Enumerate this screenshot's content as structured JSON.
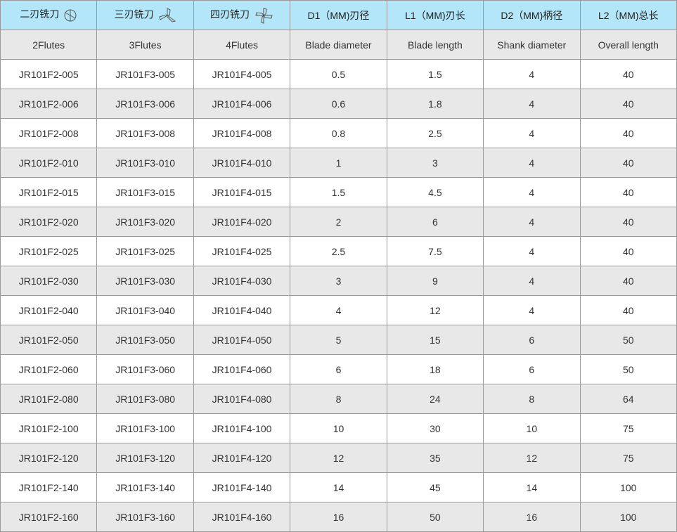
{
  "header": [
    "二刃铣刀",
    "三刃铣刀",
    "四刃铣刀",
    "D1（MM)刃径",
    "L1（MM)刃长",
    "D2（MM)柄径",
    "L2（MM)总长"
  ],
  "header_icons": [
    "two-flute-cutter-icon",
    "three-flute-cutter-icon",
    "four-flute-cutter-icon"
  ],
  "subheader": [
    "2Flutes",
    "3Flutes",
    "4Flutes",
    "Blade diameter",
    "Blade length",
    "Shank diameter",
    "Overall length"
  ],
  "colors": {
    "header_bg": "#b3e6f8",
    "alt_row_bg": "#e9e8e8",
    "border": "#9a9a9a"
  },
  "rows": [
    [
      "JR101F2-005",
      "JR101F3-005",
      "JR101F4-005",
      "0.5",
      "1.5",
      "4",
      "40"
    ],
    [
      "JR101F2-006",
      "JR101F3-006",
      "JR101F4-006",
      "0.6",
      "1.8",
      "4",
      "40"
    ],
    [
      "JR101F2-008",
      "JR101F3-008",
      "JR101F4-008",
      "0.8",
      "2.5",
      "4",
      "40"
    ],
    [
      "JR101F2-010",
      "JR101F3-010",
      "JR101F4-010",
      "1",
      "3",
      "4",
      "40"
    ],
    [
      "JR101F2-015",
      "JR101F3-015",
      "JR101F4-015",
      "1.5",
      "4.5",
      "4",
      "40"
    ],
    [
      "JR101F2-020",
      "JR101F3-020",
      "JR101F4-020",
      "2",
      "6",
      "4",
      "40"
    ],
    [
      "JR101F2-025",
      "JR101F3-025",
      "JR101F4-025",
      "2.5",
      "7.5",
      "4",
      "40"
    ],
    [
      "JR101F2-030",
      "JR101F3-030",
      "JR101F4-030",
      "3",
      "9",
      "4",
      "40"
    ],
    [
      "JR101F2-040",
      "JR101F3-040",
      "JR101F4-040",
      "4",
      "12",
      "4",
      "40"
    ],
    [
      "JR101F2-050",
      "JR101F3-050",
      "JR101F4-050",
      "5",
      "15",
      "6",
      "50"
    ],
    [
      "JR101F2-060",
      "JR101F3-060",
      "JR101F4-060",
      "6",
      "18",
      "6",
      "50"
    ],
    [
      "JR101F2-080",
      "JR101F3-080",
      "JR101F4-080",
      "8",
      "24",
      "8",
      "64"
    ],
    [
      "JR101F2-100",
      "JR101F3-100",
      "JR101F4-100",
      "10",
      "30",
      "10",
      "75"
    ],
    [
      "JR101F2-120",
      "JR101F3-120",
      "JR101F4-120",
      "12",
      "35",
      "12",
      "75"
    ],
    [
      "JR101F2-140",
      "JR101F3-140",
      "JR101F4-140",
      "14",
      "45",
      "14",
      "100"
    ],
    [
      "JR101F2-160",
      "JR101F3-160",
      "JR101F4-160",
      "16",
      "50",
      "16",
      "100"
    ]
  ]
}
